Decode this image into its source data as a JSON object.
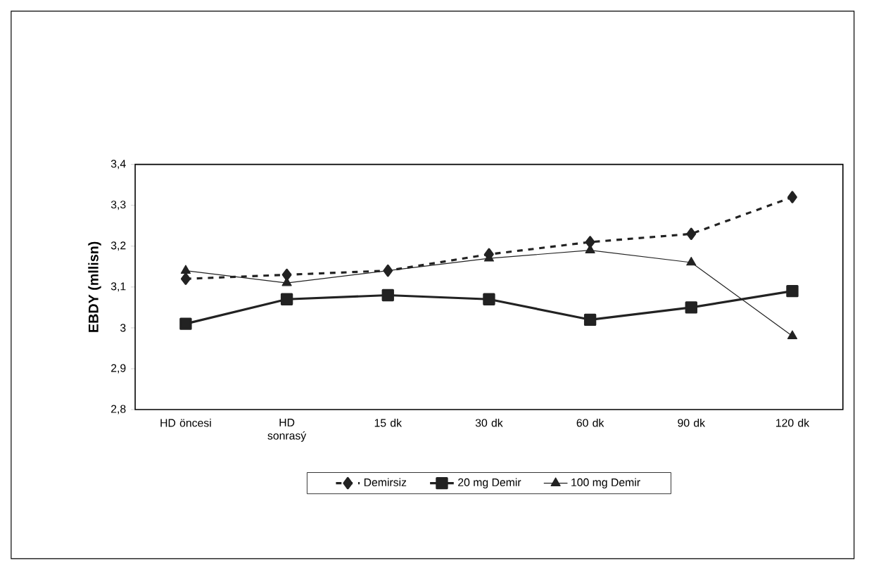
{
  "chart_data": {
    "type": "line",
    "ylabel": "EBDY (mllisn)",
    "categories": [
      "HD öncesi",
      "HD sonrasý",
      "15 dk",
      "30 dk",
      "60 dk",
      "90 dk",
      "120 dk"
    ],
    "series": [
      {
        "name": "Demirsiz",
        "color": "#222222",
        "marker": "diamond",
        "line_style": "dashed",
        "values": [
          3.12,
          3.13,
          3.14,
          3.18,
          3.21,
          3.23,
          3.32
        ]
      },
      {
        "name": "20 mg Demir",
        "color": "#222222",
        "marker": "square",
        "line_style": "solid",
        "values": [
          3.01,
          3.07,
          3.08,
          3.07,
          3.02,
          3.05,
          3.09
        ]
      },
      {
        "name": "100 mg Demir",
        "color": "#222222",
        "marker": "triangle",
        "line_style": "solid",
        "values": [
          3.14,
          3.11,
          null,
          3.17,
          3.19,
          3.16,
          2.98
        ]
      }
    ],
    "ylim": [
      2.8,
      3.4
    ],
    "yticks": [
      {
        "value": 2.8,
        "label": "2,8"
      },
      {
        "value": 2.9,
        "label": "2,9"
      },
      3,
      {
        "value": 3.1,
        "label": "3,1"
      },
      {
        "value": 3.2,
        "label": "3,2"
      },
      {
        "value": 3.3,
        "label": "3,3"
      },
      {
        "value": 3.4,
        "label": "3,4"
      }
    ],
    "grid": false,
    "legend": "bottom"
  }
}
